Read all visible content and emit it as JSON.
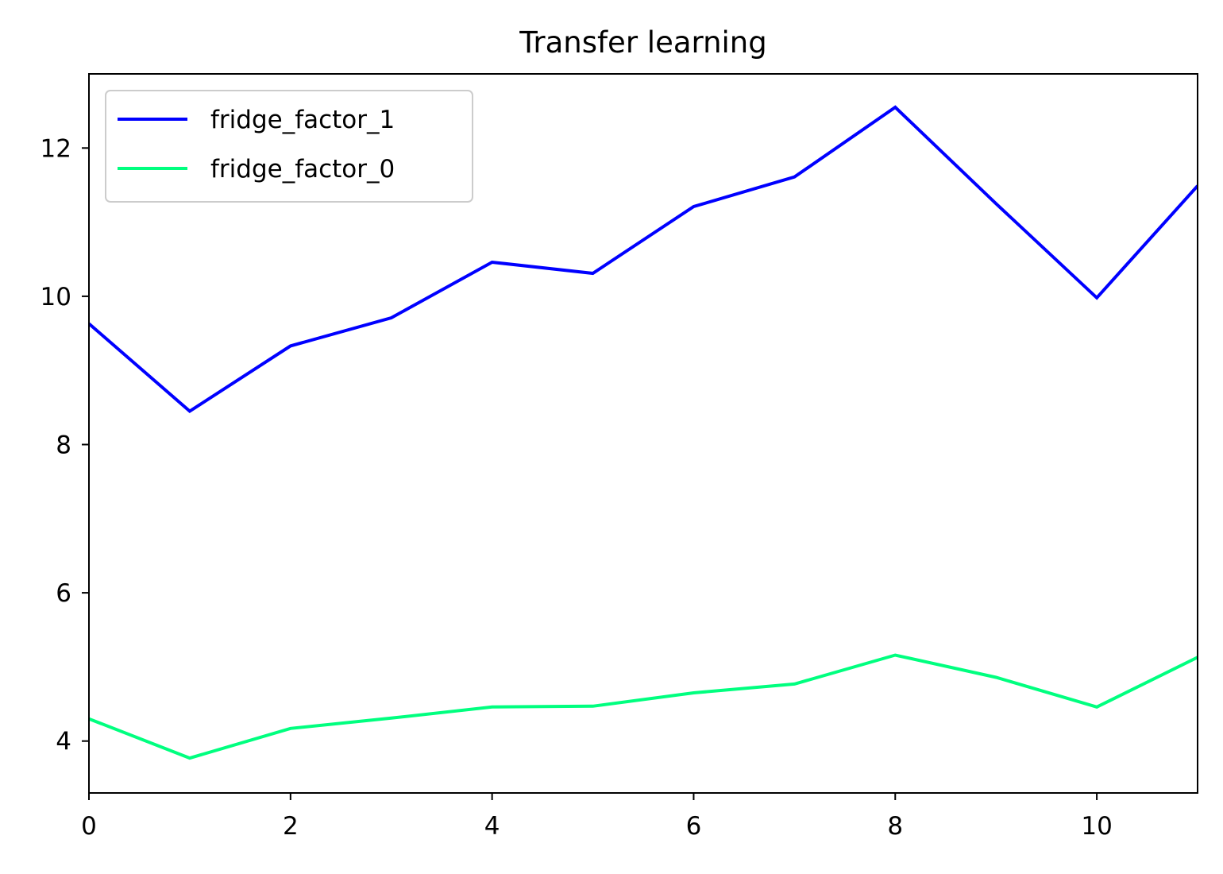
{
  "chart_data": {
    "type": "line",
    "title": "Transfer learning",
    "xlabel": "",
    "ylabel": "",
    "xlim": [
      0,
      11
    ],
    "ylim": [
      3.3,
      13.0
    ],
    "x_ticks": [
      0,
      2,
      4,
      6,
      8,
      10
    ],
    "y_ticks": [
      4,
      6,
      8,
      10,
      12
    ],
    "grid": false,
    "legend_position": "upper-left",
    "x": [
      0,
      1,
      2,
      3,
      4,
      5,
      6,
      7,
      8,
      9,
      10,
      11
    ],
    "series": [
      {
        "name": "fridge_factor_1",
        "color": "#0000ff",
        "values": [
          9.63,
          8.45,
          9.33,
          9.71,
          10.46,
          10.31,
          11.21,
          11.61,
          12.55,
          11.25,
          9.98,
          11.49
        ]
      },
      {
        "name": "fridge_factor_0",
        "color": "#00ff7f",
        "values": [
          4.3,
          3.77,
          4.17,
          4.31,
          4.46,
          4.47,
          4.65,
          4.77,
          5.16,
          4.86,
          4.46,
          5.13
        ]
      }
    ]
  }
}
